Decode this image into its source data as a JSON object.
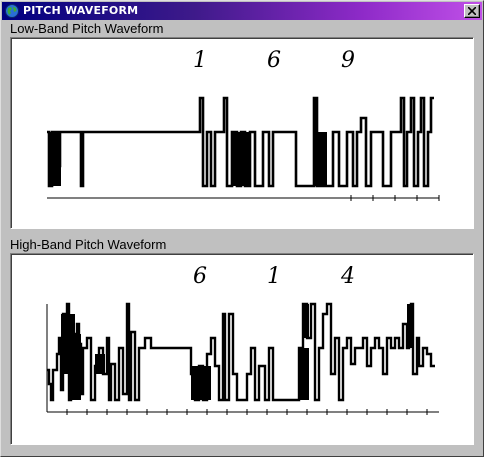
{
  "window": {
    "title": "PITCH WAVEFORM",
    "icon": "globe-icon",
    "close_icon": "close-icon"
  },
  "panels": [
    {
      "label": "Low-Band Pitch Waveform",
      "digits": [
        "1",
        "6",
        "9"
      ]
    },
    {
      "label": "High-Band Pitch Waveform",
      "digits": [
        "6",
        "1",
        "4"
      ]
    }
  ]
}
